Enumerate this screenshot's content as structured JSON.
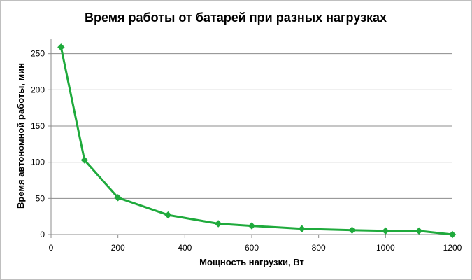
{
  "chart_data": {
    "type": "line",
    "title": "Время работы от батарей при разных нагрузках",
    "xlabel": "Мощность нагрузки, Вт",
    "ylabel": "Время автономной работы, мин",
    "xlim": [
      0,
      1200
    ],
    "ylim": [
      0,
      270
    ],
    "xticks": [
      0,
      200,
      400,
      600,
      800,
      1000,
      1200
    ],
    "yticks": [
      0,
      50,
      100,
      150,
      200,
      250
    ],
    "grid": "horizontal",
    "legend": "none",
    "colors": {
      "series": "#1faa3c",
      "grid": "#8c8c8c",
      "axis": "#8c8c8c"
    },
    "series": [
      {
        "x": [
          30,
          100,
          200,
          350,
          500,
          600,
          750,
          900,
          1000,
          1100,
          1200
        ],
        "y": [
          259,
          103,
          51,
          27,
          15,
          12,
          8,
          6,
          5,
          5,
          0
        ]
      }
    ]
  }
}
